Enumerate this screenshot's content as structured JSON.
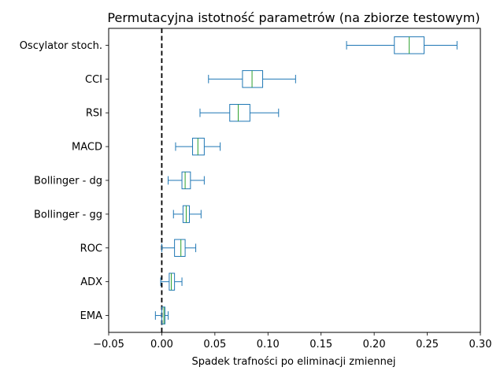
{
  "chart_data": {
    "type": "box",
    "orientation": "horizontal",
    "title": "Permutacyjna istotność parametrów (na zbiorze testowym)",
    "xlabel": "Spadek trafności po eliminacji zmiennej",
    "ylabel": "",
    "xlim": [
      -0.05,
      0.3
    ],
    "x_ticks": [
      -0.05,
      0.0,
      0.05,
      0.1,
      0.15,
      0.2,
      0.25,
      0.3
    ],
    "x_tick_labels": [
      "−0.05",
      "0.00",
      "0.05",
      "0.10",
      "0.15",
      "0.20",
      "0.25",
      "0.30"
    ],
    "grid": false,
    "reference_line": {
      "x": 0.0,
      "style": "dashed",
      "color": "#000000"
    },
    "colors": {
      "box": "#1f77b4",
      "median": "#2ca02c",
      "axis": "#000000"
    },
    "categories": [
      "Oscylator stoch.",
      "CCI",
      "RSI",
      "MACD",
      "Bollinger - dg",
      "Bollinger - gg",
      "ROC",
      "ADX",
      "EMA"
    ],
    "boxes": [
      {
        "label": "Oscylator stoch.",
        "whisker_low": 0.174,
        "q1": 0.219,
        "median": 0.233,
        "q3": 0.247,
        "whisker_high": 0.278
      },
      {
        "label": "CCI",
        "whisker_low": 0.044,
        "q1": 0.076,
        "median": 0.085,
        "q3": 0.095,
        "whisker_high": 0.126
      },
      {
        "label": "RSI",
        "whisker_low": 0.036,
        "q1": 0.064,
        "median": 0.072,
        "q3": 0.083,
        "whisker_high": 0.11
      },
      {
        "label": "MACD",
        "whisker_low": 0.013,
        "q1": 0.029,
        "median": 0.034,
        "q3": 0.04,
        "whisker_high": 0.055
      },
      {
        "label": "Bollinger - dg",
        "whisker_low": 0.006,
        "q1": 0.019,
        "median": 0.022,
        "q3": 0.027,
        "whisker_high": 0.04
      },
      {
        "label": "Bollinger - gg",
        "whisker_low": 0.011,
        "q1": 0.02,
        "median": 0.023,
        "q3": 0.026,
        "whisker_high": 0.037
      },
      {
        "label": "ROC",
        "whisker_low": 0.0,
        "q1": 0.012,
        "median": 0.018,
        "q3": 0.022,
        "whisker_high": 0.032
      },
      {
        "label": "ADX",
        "whisker_low": -0.001,
        "q1": 0.007,
        "median": 0.009,
        "q3": 0.012,
        "whisker_high": 0.019
      },
      {
        "label": "EMA",
        "whisker_low": -0.006,
        "q1": 0.0,
        "median": 0.002,
        "q3": 0.003,
        "whisker_high": 0.006
      }
    ]
  }
}
